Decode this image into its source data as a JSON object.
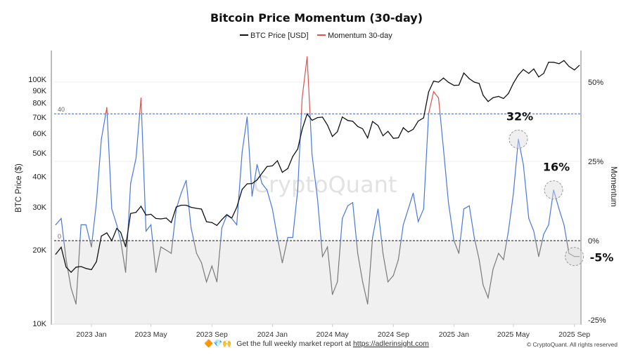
{
  "chart_data": {
    "type": "line",
    "title": "Bitcoin Price Momentum (30-day)",
    "legend": [
      "BTC Price [USD]",
      "Momentum 30-day"
    ],
    "legend_placement": "top-center",
    "ylabel_left": "BTC Price ($)",
    "ylabel_right": "Momentum",
    "left_axis": {
      "scale": "log",
      "range": [
        10000,
        135000
      ],
      "ticks": [
        10000,
        20000,
        30000,
        40000,
        50000,
        60000,
        70000,
        80000,
        90000,
        100000
      ],
      "tick_labels": [
        "10K",
        "20K",
        "30K",
        "40K",
        "50K",
        "60K",
        "70K",
        "80K",
        "90K",
        "100K"
      ]
    },
    "right_axis": {
      "scale": "linear",
      "range": [
        -26,
        60
      ],
      "ticks": [
        -25,
        0,
        25,
        50
      ],
      "tick_labels": [
        "-25%",
        "0%",
        "25%",
        "50%"
      ]
    },
    "x_ticks": [
      "2023-01-01",
      "2023-05-01",
      "2023-09-01",
      "2024-01-01",
      "2024-05-01",
      "2024-09-01",
      "2025-01-01",
      "2025-05-01",
      "2025-09-01"
    ],
    "x_tick_labels": [
      "2023 Jan",
      "2023 May",
      "2023 Sep",
      "2024 Jan",
      "2024 May",
      "2024 Sep",
      "2025 Jan",
      "2025 May",
      "2025 Sep"
    ],
    "thresholds": [
      {
        "value": 40,
        "label": "40",
        "color": "#3a5fcd"
      },
      {
        "value": 0,
        "label": "0",
        "color": "#111111"
      }
    ],
    "colors": {
      "price": "#111111",
      "momentum_positive": "#4a78dc",
      "momentum_negative": "#7a7a7a",
      "momentum_above_40": "#d9534f",
      "negative_zone": "#f0f0f0"
    },
    "grid": true,
    "dates": [
      "2022-10-21",
      "2022-11-01",
      "2022-11-11",
      "2022-11-21",
      "2022-12-01",
      "2022-12-11",
      "2022-12-21",
      "2023-01-01",
      "2023-01-11",
      "2023-01-21",
      "2023-02-01",
      "2023-02-11",
      "2023-02-21",
      "2023-03-01",
      "2023-03-11",
      "2023-03-21",
      "2023-04-01",
      "2023-04-11",
      "2023-04-21",
      "2023-05-01",
      "2023-05-11",
      "2023-05-21",
      "2023-06-01",
      "2023-06-11",
      "2023-06-21",
      "2023-07-01",
      "2023-07-11",
      "2023-07-21",
      "2023-08-01",
      "2023-08-11",
      "2023-08-21",
      "2023-09-01",
      "2023-09-11",
      "2023-09-21",
      "2023-10-01",
      "2023-10-11",
      "2023-10-21",
      "2023-11-01",
      "2023-11-11",
      "2023-11-21",
      "2023-12-01",
      "2023-12-11",
      "2023-12-21",
      "2024-01-01",
      "2024-01-11",
      "2024-01-21",
      "2024-02-01",
      "2024-02-11",
      "2024-02-21",
      "2024-03-01",
      "2024-03-11",
      "2024-03-21",
      "2024-04-01",
      "2024-04-11",
      "2024-04-21",
      "2024-05-01",
      "2024-05-11",
      "2024-05-21",
      "2024-06-01",
      "2024-06-11",
      "2024-06-21",
      "2024-07-01",
      "2024-07-11",
      "2024-07-21",
      "2024-08-01",
      "2024-08-11",
      "2024-08-21",
      "2024-09-01",
      "2024-09-11",
      "2024-09-21",
      "2024-10-01",
      "2024-10-11",
      "2024-10-21",
      "2024-11-01",
      "2024-11-11",
      "2024-11-21",
      "2024-12-01",
      "2024-12-11",
      "2024-12-21",
      "2025-01-01",
      "2025-01-11",
      "2025-01-21",
      "2025-02-01",
      "2025-02-11",
      "2025-02-21",
      "2025-03-01",
      "2025-03-11",
      "2025-03-21",
      "2025-04-01",
      "2025-04-11",
      "2025-04-21",
      "2025-05-01",
      "2025-05-11",
      "2025-05-21",
      "2025-06-01",
      "2025-06-11",
      "2025-06-21",
      "2025-07-01",
      "2025-07-11",
      "2025-07-21",
      "2025-08-01",
      "2025-08-11",
      "2025-08-21",
      "2025-09-01",
      "2025-09-11"
    ],
    "series": [
      {
        "name": "BTC Price [USD]",
        "axis": "left",
        "values": [
          19200,
          20500,
          17000,
          16200,
          17000,
          17100,
          16800,
          16600,
          17900,
          22800,
          23500,
          21800,
          24500,
          23600,
          20600,
          28200,
          28500,
          30200,
          27800,
          28000,
          26900,
          26800,
          27000,
          25900,
          30000,
          30500,
          30500,
          29900,
          29600,
          29400,
          26100,
          25900,
          25200,
          26600,
          27900,
          27000,
          29900,
          35400,
          37300,
          37400,
          38700,
          41200,
          43900,
          44200,
          46400,
          41600,
          43100,
          48300,
          51800,
          62400,
          72100,
          67900,
          69700,
          70000,
          64900,
          58300,
          61000,
          70100,
          67800,
          67300,
          64100,
          62700,
          57500,
          67200,
          64600,
          58700,
          61200,
          57300,
          57600,
          63300,
          60800,
          62400,
          67400,
          69500,
          88700,
          98300,
          97300,
          101200,
          97200,
          94400,
          94600,
          106100,
          100600,
          97400,
          96100,
          86000,
          81100,
          84100,
          85100,
          83400,
          87500,
          96500,
          104100,
          109600,
          105700,
          110200,
          102300,
          105700,
          117500,
          117400,
          115800,
          119300,
          113000,
          109200,
          114000
        ]
      },
      {
        "name": "Momentum 30-day",
        "axis": "right",
        "values": [
          5,
          7,
          -6,
          -15,
          -20,
          5,
          5,
          -2,
          12,
          32,
          42,
          10,
          5,
          0,
          -10,
          18,
          26,
          45,
          3,
          5,
          -10,
          -2,
          -3,
          -4,
          10,
          15,
          19,
          4,
          -4,
          -7,
          -13,
          -8,
          -13,
          4,
          8,
          7,
          5,
          28,
          39,
          14,
          24,
          18,
          16,
          10,
          1,
          -7,
          1,
          1,
          16,
          45,
          58,
          27,
          13,
          -5,
          -2,
          -17,
          -13,
          7,
          11,
          12,
          -4,
          -13,
          -20,
          1,
          10,
          -4,
          -13,
          -11,
          -6,
          5,
          10,
          15,
          6,
          10,
          40,
          47,
          45,
          29,
          12,
          0,
          -4,
          10,
          11,
          1,
          -6,
          -14,
          -18,
          -9,
          -4,
          -6,
          3,
          15,
          32,
          24,
          7,
          3,
          -5,
          2,
          5,
          16,
          10,
          5,
          -4,
          -5,
          -5
        ]
      }
    ],
    "annotations": [
      {
        "label": "32%",
        "date": "2025-05-11",
        "value": 32
      },
      {
        "label": "16%",
        "date": "2025-07-21",
        "value": 16
      },
      {
        "label": "-5%",
        "date": "2025-09-01",
        "value": -5
      }
    ]
  },
  "watermark": "CryptoQuant",
  "footer": {
    "emoji": "🔶💎🙌",
    "text": "Get the full weekly market report at ",
    "link": "https://adlerinsight.com",
    "copyright": "© CryptoQuant. All rights reserved"
  }
}
